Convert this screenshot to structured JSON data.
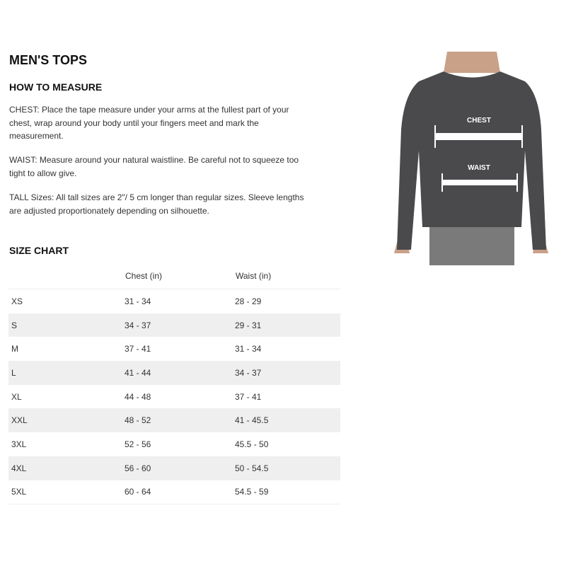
{
  "title": "MEN'S TOPS",
  "how_to_measure": {
    "heading": "HOW TO MEASURE",
    "chest": "CHEST: Place the tape measure under your arms at the fullest part of your chest, wrap around your body until your fingers meet and mark the measurement.",
    "waist": "WAIST: Measure around your natural waistline. Be careful not to squeeze too tight to allow give.",
    "tall": "TALL Sizes: All tall sizes are 2\"/ 5 cm longer than regular sizes. Sleeve lengths are adjusted proportionately depending on silhouette."
  },
  "size_chart": {
    "heading": "SIZE CHART",
    "headers": [
      "",
      "Chest (in)",
      "Waist (in)"
    ],
    "rows": [
      [
        "XS",
        "31 - 34",
        "28 - 29"
      ],
      [
        "S",
        "34 - 37",
        "29 - 31"
      ],
      [
        "M",
        "37 - 41",
        "31 - 34"
      ],
      [
        "L",
        "41 - 44",
        "34 - 37"
      ],
      [
        "XL",
        "44 - 48",
        "37 - 41"
      ],
      [
        "XXL",
        "48 - 52",
        "41 - 45.5"
      ],
      [
        "3XL",
        "52 - 56",
        "45.5 - 50"
      ],
      [
        "4XL",
        "56 - 60",
        "50 - 54.5"
      ],
      [
        "5XL",
        "60 - 64",
        "54.5 - 59"
      ]
    ]
  },
  "image": {
    "chest_label": "CHEST",
    "waist_label": "WAIST",
    "colors": {
      "shirt": "#4a4a4c",
      "skin": "#c9a088",
      "shorts": "#7a7a7a"
    }
  }
}
